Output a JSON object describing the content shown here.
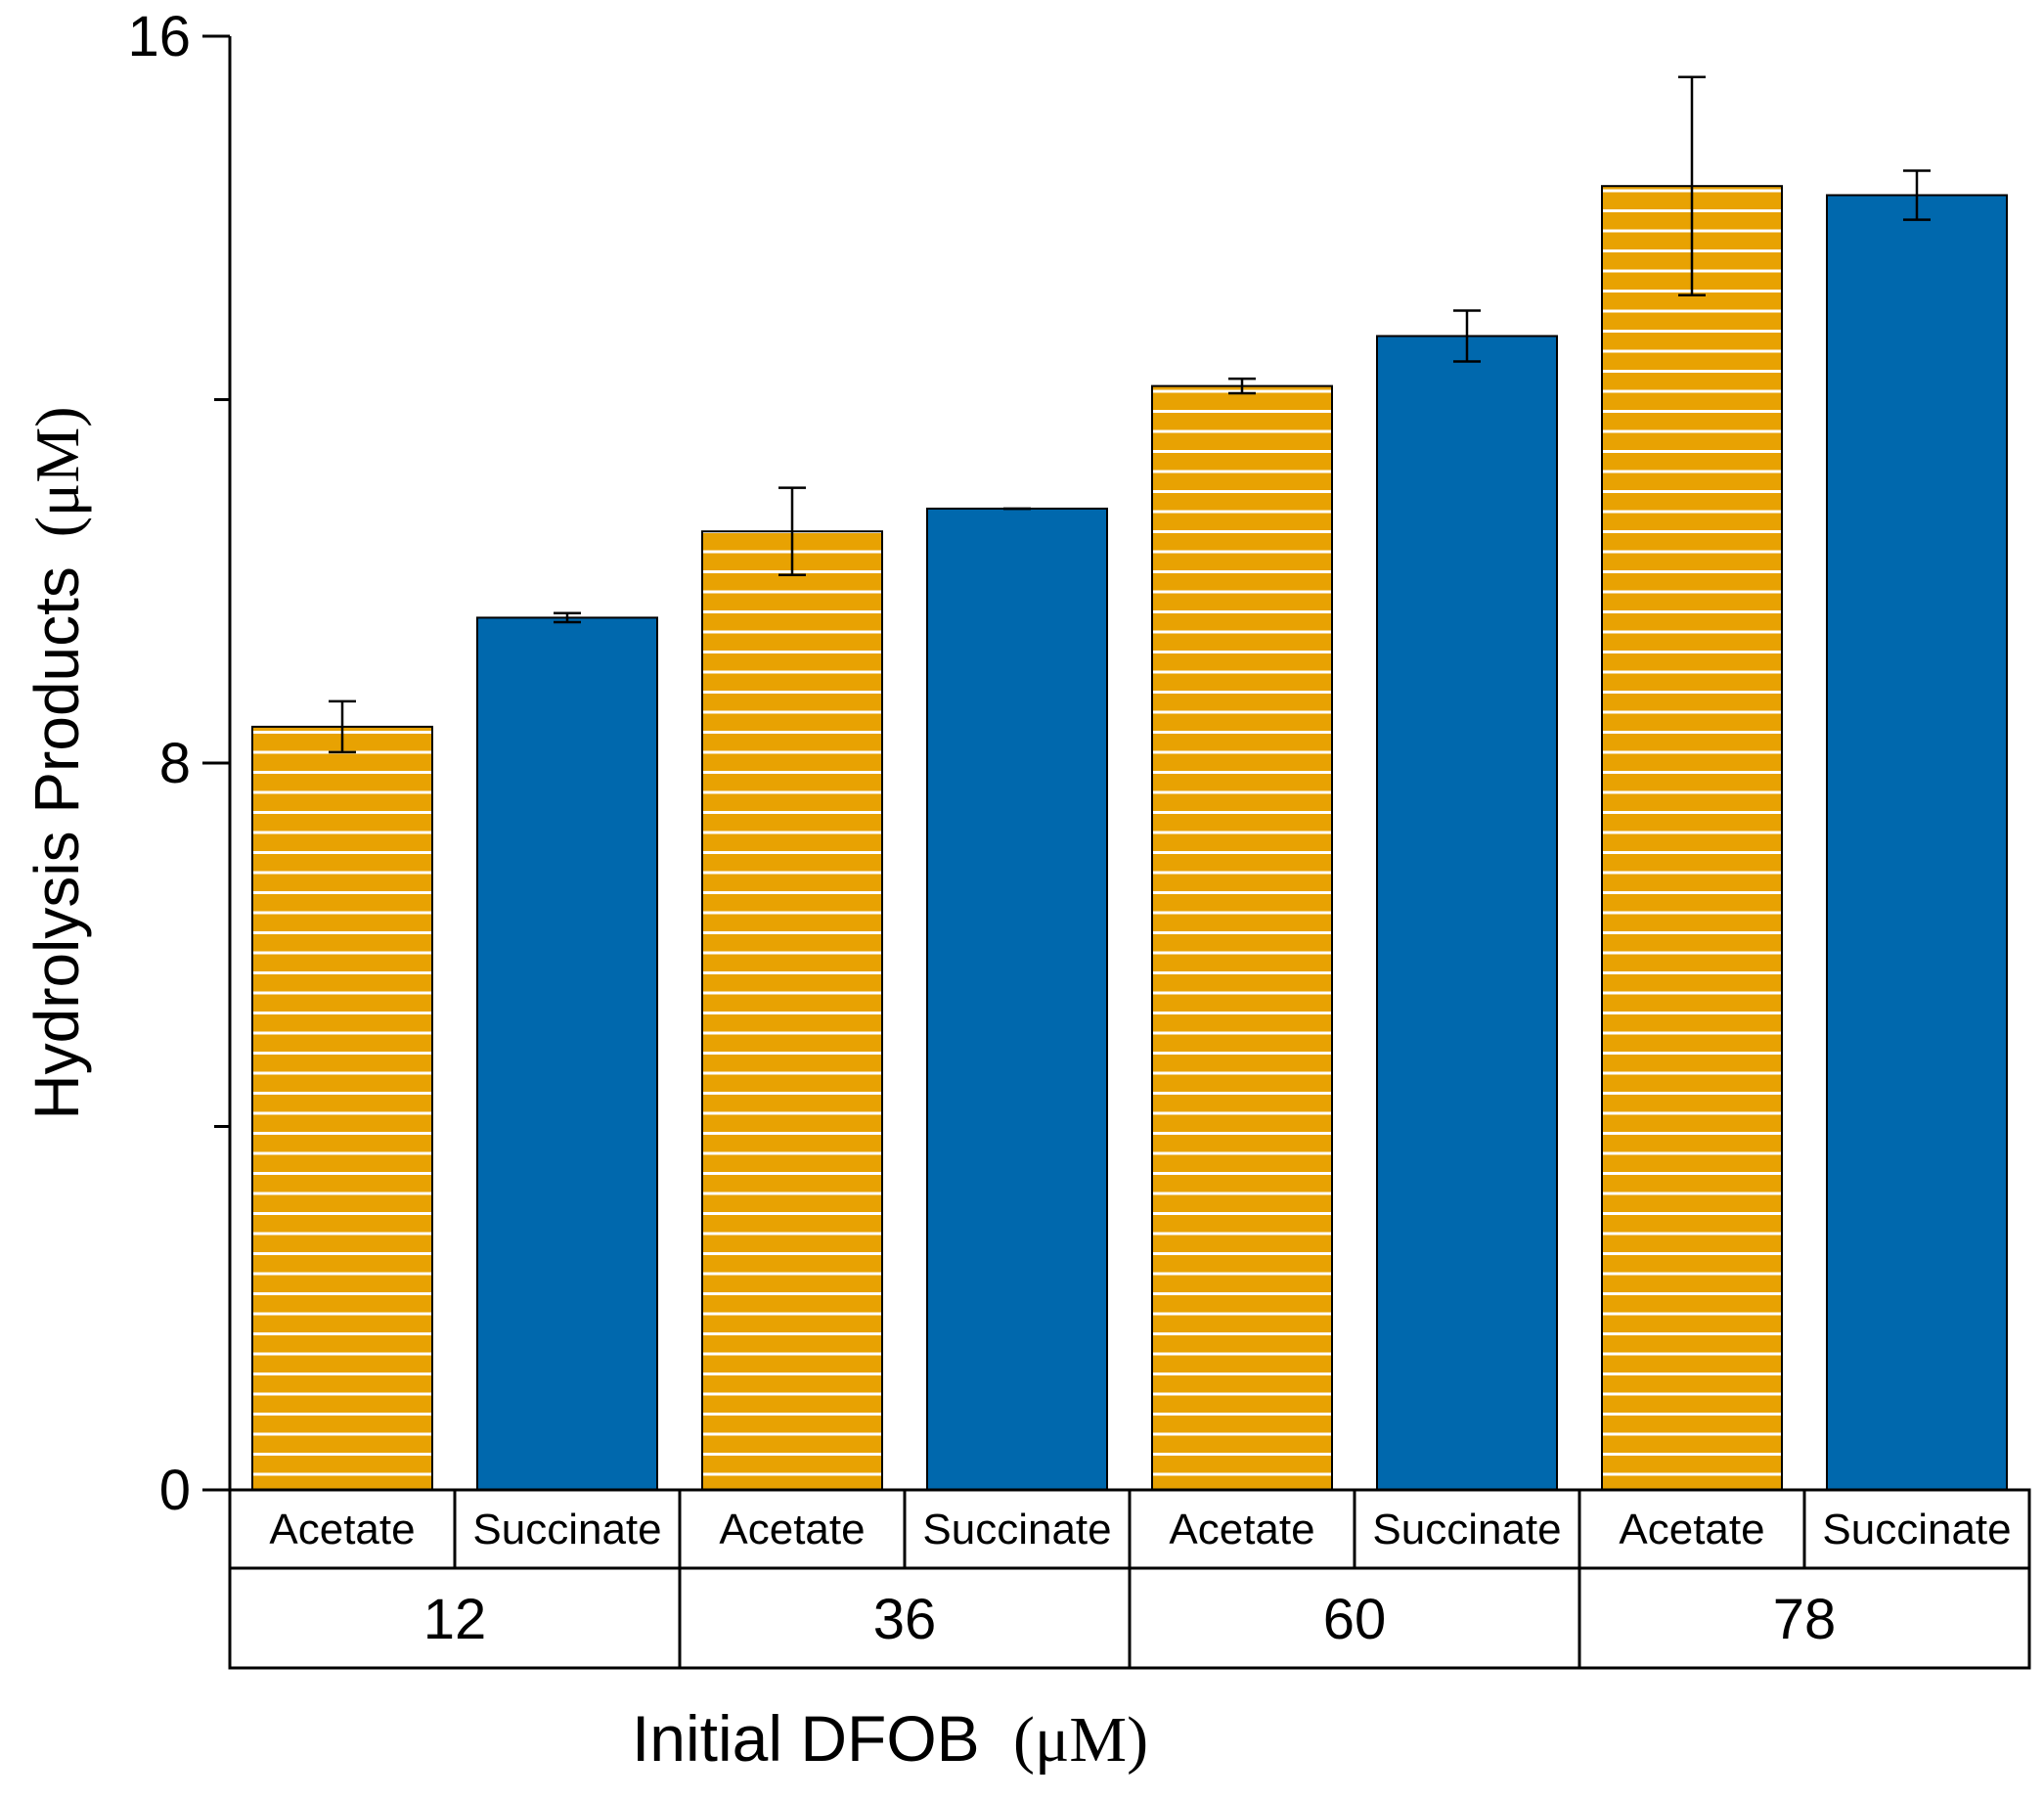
{
  "chart_data": {
    "type": "bar",
    "title": "",
    "xlabel_main": "Initial DFOB",
    "xlabel_unit": "(μM)",
    "ylabel_main": "Hydrolysis Products",
    "ylabel_unit": "(μM)",
    "ylim": [
      0,
      16
    ],
    "yticks_major": [
      "0",
      "8",
      "16"
    ],
    "yticks_minor": [
      4,
      12
    ],
    "groups": [
      "12",
      "36",
      "60",
      "78"
    ],
    "series_names": [
      "Acetate",
      "Succinate"
    ],
    "series": [
      {
        "name": "Acetate",
        "color": "#E8A202",
        "pattern": "white-horizontal-stripes",
        "values": [
          8.4,
          10.55,
          12.15,
          14.35
        ],
        "errors": [
          0.28,
          0.48,
          0.08,
          1.2
        ]
      },
      {
        "name": "Succinate",
        "color": "#0068AD",
        "pattern": "solid",
        "values": [
          9.6,
          10.8,
          12.7,
          14.25
        ],
        "errors": [
          0.05,
          0.0,
          0.28,
          0.27
        ]
      }
    ]
  }
}
